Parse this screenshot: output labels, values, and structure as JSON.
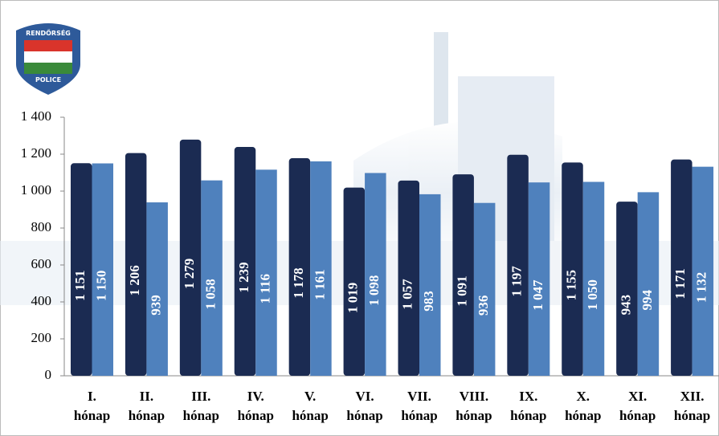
{
  "logo": {
    "top": "RENDŐRSÉG",
    "bottom": "POLICE"
  },
  "chart_data": {
    "type": "bar",
    "categories": [
      "I. hónap",
      "II. hónap",
      "III. hónap",
      "IV. hónap",
      "V. hónap",
      "VI. hónap",
      "VII. hónap",
      "VIII. hónap",
      "IX. hónap",
      "X. hónap",
      "XI. hónap",
      "XII. hónap"
    ],
    "series": [
      {
        "color": "#1b2b52",
        "values": [
          1151,
          1206,
          1279,
          1239,
          1178,
          1019,
          1057,
          1091,
          1197,
          1155,
          943,
          1171
        ],
        "value_labels": [
          "1 151",
          "1 206",
          "1 279",
          "1 239",
          "1 178",
          "1 019",
          "1 057",
          "1 091",
          "1 197",
          "1 155",
          "943",
          "1 171"
        ]
      },
      {
        "color": "#4f81bd",
        "values": [
          1150,
          939,
          1058,
          1116,
          1161,
          1098,
          983,
          936,
          1047,
          1050,
          994,
          1132
        ],
        "value_labels": [
          "1 150",
          "939",
          "1 058",
          "1 116",
          "1 161",
          "1 098",
          "983",
          "936",
          "1 047",
          "1 050",
          "994",
          "1 132"
        ]
      }
    ],
    "ylim": [
      0,
      1400
    ],
    "yticks": [
      0,
      200,
      400,
      600,
      800,
      {
        "value": 1000,
        "label": "1 000"
      },
      {
        "value": 1200,
        "label": "1 200"
      },
      {
        "value": 1400,
        "label": "1 400"
      }
    ],
    "grid": false
  }
}
